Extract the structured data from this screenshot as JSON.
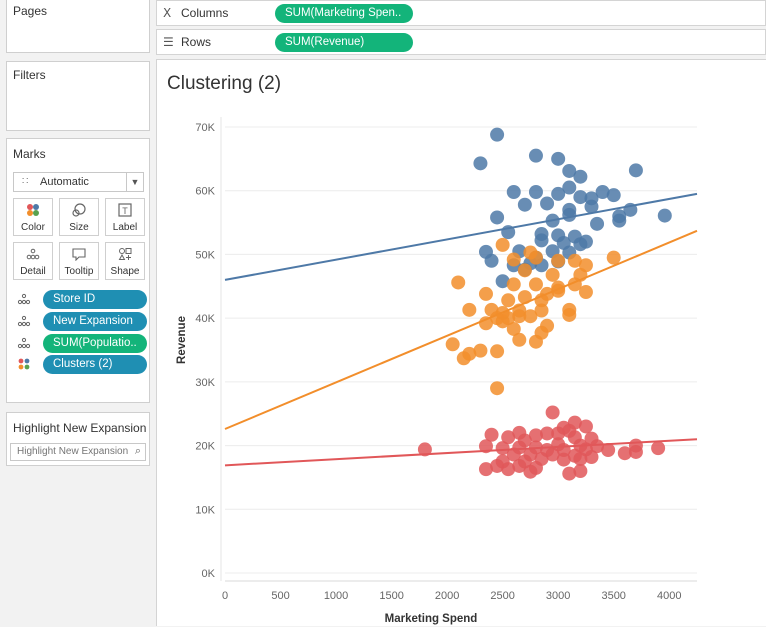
{
  "shelves": {
    "columns": {
      "label": "Columns",
      "pill": "SUM(Marketing Spen.."
    },
    "rows": {
      "label": "Rows",
      "pill": "SUM(Revenue)"
    }
  },
  "cards": {
    "pages": "Pages",
    "filters": "Filters",
    "marks": {
      "title": "Marks",
      "mark_type": "Automatic",
      "buttons": [
        {
          "label": "Color",
          "icon": "color-icon"
        },
        {
          "label": "Size",
          "icon": "size-icon"
        },
        {
          "label": "Label",
          "icon": "label-icon"
        },
        {
          "label": "Detail",
          "icon": "detail-icon"
        },
        {
          "label": "Tooltip",
          "icon": "tooltip-icon"
        },
        {
          "label": "Shape",
          "icon": "shape-icon"
        }
      ],
      "fields": [
        {
          "label": "Store ID",
          "icon": "detail-icon",
          "color": "#1f8fb3"
        },
        {
          "label": "New Expansion",
          "icon": "detail-icon",
          "color": "#1f8fb3"
        },
        {
          "label": "SUM(Populatio..",
          "icon": "detail-icon",
          "color": "#13b47a"
        },
        {
          "label": "Clusters (2)",
          "icon": "color-icon",
          "color": "#1f8fb3"
        }
      ]
    },
    "highlight": {
      "title": "Highlight New Expansion",
      "placeholder": "Highlight New Expansion"
    }
  },
  "view": {
    "title": "Clustering (2)"
  },
  "chart_data": {
    "type": "scatter",
    "title": "Clustering (2)",
    "xlabel": "Marketing Spend",
    "ylabel": "Revenue",
    "xlim": [
      0,
      4250
    ],
    "ylim": [
      0,
      70000
    ],
    "x_ticks": [
      0,
      500,
      1000,
      1500,
      2000,
      2500,
      3000,
      3500,
      4000
    ],
    "y_ticks": [
      0,
      10000,
      20000,
      30000,
      40000,
      50000,
      60000,
      70000
    ],
    "y_tick_labels": [
      "0K",
      "10K",
      "20K",
      "30K",
      "40K",
      "50K",
      "60K",
      "70K"
    ],
    "grid": true,
    "series": [
      {
        "color": "#4e79a7",
        "trend": [
          [
            0,
            46000
          ],
          [
            4250,
            59500
          ]
        ],
        "points": [
          [
            2450,
            68800
          ],
          [
            2800,
            65500
          ],
          [
            3000,
            65000
          ],
          [
            2300,
            64300
          ],
          [
            3100,
            63100
          ],
          [
            3200,
            62200
          ],
          [
            3700,
            63200
          ],
          [
            2600,
            59800
          ],
          [
            2800,
            59800
          ],
          [
            3100,
            60500
          ],
          [
            3000,
            59500
          ],
          [
            3200,
            59000
          ],
          [
            3300,
            58800
          ],
          [
            3400,
            59800
          ],
          [
            3500,
            59300
          ],
          [
            2700,
            57800
          ],
          [
            2900,
            58000
          ],
          [
            3100,
            57000
          ],
          [
            3300,
            57500
          ],
          [
            3550,
            56000
          ],
          [
            3650,
            57000
          ],
          [
            2450,
            55800
          ],
          [
            2950,
            55300
          ],
          [
            3100,
            56200
          ],
          [
            3350,
            54800
          ],
          [
            3550,
            55300
          ],
          [
            3960,
            56100
          ],
          [
            2550,
            53500
          ],
          [
            2850,
            53200
          ],
          [
            3000,
            53000
          ],
          [
            3150,
            52800
          ],
          [
            2850,
            52200
          ],
          [
            3050,
            51800
          ],
          [
            3250,
            52000
          ],
          [
            2350,
            50400
          ],
          [
            2650,
            50500
          ],
          [
            2800,
            49500
          ],
          [
            3100,
            50300
          ],
          [
            3200,
            51600
          ],
          [
            2400,
            49000
          ],
          [
            2950,
            50500
          ],
          [
            2600,
            48300
          ],
          [
            2750,
            48600
          ],
          [
            2700,
            47600
          ],
          [
            2500,
            45800
          ],
          [
            2850,
            48300
          ],
          [
            3000,
            48900
          ]
        ]
      },
      {
        "color": "#f28e2b",
        "trend": [
          [
            0,
            22600
          ],
          [
            4250,
            53700
          ]
        ],
        "points": [
          [
            2500,
            51500
          ],
          [
            2750,
            50300
          ],
          [
            2600,
            49200
          ],
          [
            2800,
            49500
          ],
          [
            3000,
            49000
          ],
          [
            3150,
            49000
          ],
          [
            3250,
            48300
          ],
          [
            3500,
            49500
          ],
          [
            2700,
            47500
          ],
          [
            2950,
            46800
          ],
          [
            3200,
            46800
          ],
          [
            2100,
            45600
          ],
          [
            2600,
            45300
          ],
          [
            2800,
            45300
          ],
          [
            3000,
            44800
          ],
          [
            3150,
            45300
          ],
          [
            2350,
            43800
          ],
          [
            2700,
            43300
          ],
          [
            2900,
            43800
          ],
          [
            3000,
            44300
          ],
          [
            3250,
            44100
          ],
          [
            2550,
            42800
          ],
          [
            2850,
            42800
          ],
          [
            2200,
            41300
          ],
          [
            2400,
            41300
          ],
          [
            2500,
            40800
          ],
          [
            2650,
            41200
          ],
          [
            2850,
            41200
          ],
          [
            3100,
            41300
          ],
          [
            2450,
            40000
          ],
          [
            2550,
            40000
          ],
          [
            2650,
            40300
          ],
          [
            2750,
            40300
          ],
          [
            3100,
            40500
          ],
          [
            2350,
            39200
          ],
          [
            2500,
            39500
          ],
          [
            2900,
            38800
          ],
          [
            2600,
            38300
          ],
          [
            2850,
            37700
          ],
          [
            2650,
            36600
          ],
          [
            2800,
            36300
          ],
          [
            2050,
            35900
          ],
          [
            2300,
            34900
          ],
          [
            2200,
            34400
          ],
          [
            2450,
            34800
          ],
          [
            2150,
            33700
          ],
          [
            2450,
            29000
          ]
        ]
      },
      {
        "color": "#e15759",
        "trend": [
          [
            0,
            16900
          ],
          [
            4250,
            21000
          ]
        ],
        "points": [
          [
            2950,
            25200
          ],
          [
            3150,
            23600
          ],
          [
            3050,
            22800
          ],
          [
            3250,
            23000
          ],
          [
            3100,
            22300
          ],
          [
            2400,
            21700
          ],
          [
            2550,
            21300
          ],
          [
            2650,
            22000
          ],
          [
            2800,
            21600
          ],
          [
            2900,
            21900
          ],
          [
            3000,
            21900
          ],
          [
            3150,
            21300
          ],
          [
            3300,
            21100
          ],
          [
            2700,
            20800
          ],
          [
            3000,
            20200
          ],
          [
            3200,
            20000
          ],
          [
            3350,
            19900
          ],
          [
            3700,
            20000
          ],
          [
            3900,
            19600
          ],
          [
            1800,
            19400
          ],
          [
            2350,
            19900
          ],
          [
            2500,
            19600
          ],
          [
            2650,
            19700
          ],
          [
            2800,
            19700
          ],
          [
            2900,
            19300
          ],
          [
            3050,
            19300
          ],
          [
            3250,
            19400
          ],
          [
            3450,
            19300
          ],
          [
            3600,
            18800
          ],
          [
            3700,
            19000
          ],
          [
            2600,
            18600
          ],
          [
            2750,
            18600
          ],
          [
            2950,
            18600
          ],
          [
            3150,
            18400
          ],
          [
            3300,
            18200
          ],
          [
            2500,
            17500
          ],
          [
            2700,
            17500
          ],
          [
            2850,
            17900
          ],
          [
            3050,
            17800
          ],
          [
            3200,
            17900
          ],
          [
            2450,
            16800
          ],
          [
            2650,
            16800
          ],
          [
            2800,
            16500
          ],
          [
            2350,
            16300
          ],
          [
            2550,
            16300
          ],
          [
            2750,
            15900
          ],
          [
            3100,
            15600
          ],
          [
            3200,
            16000
          ]
        ]
      }
    ]
  }
}
